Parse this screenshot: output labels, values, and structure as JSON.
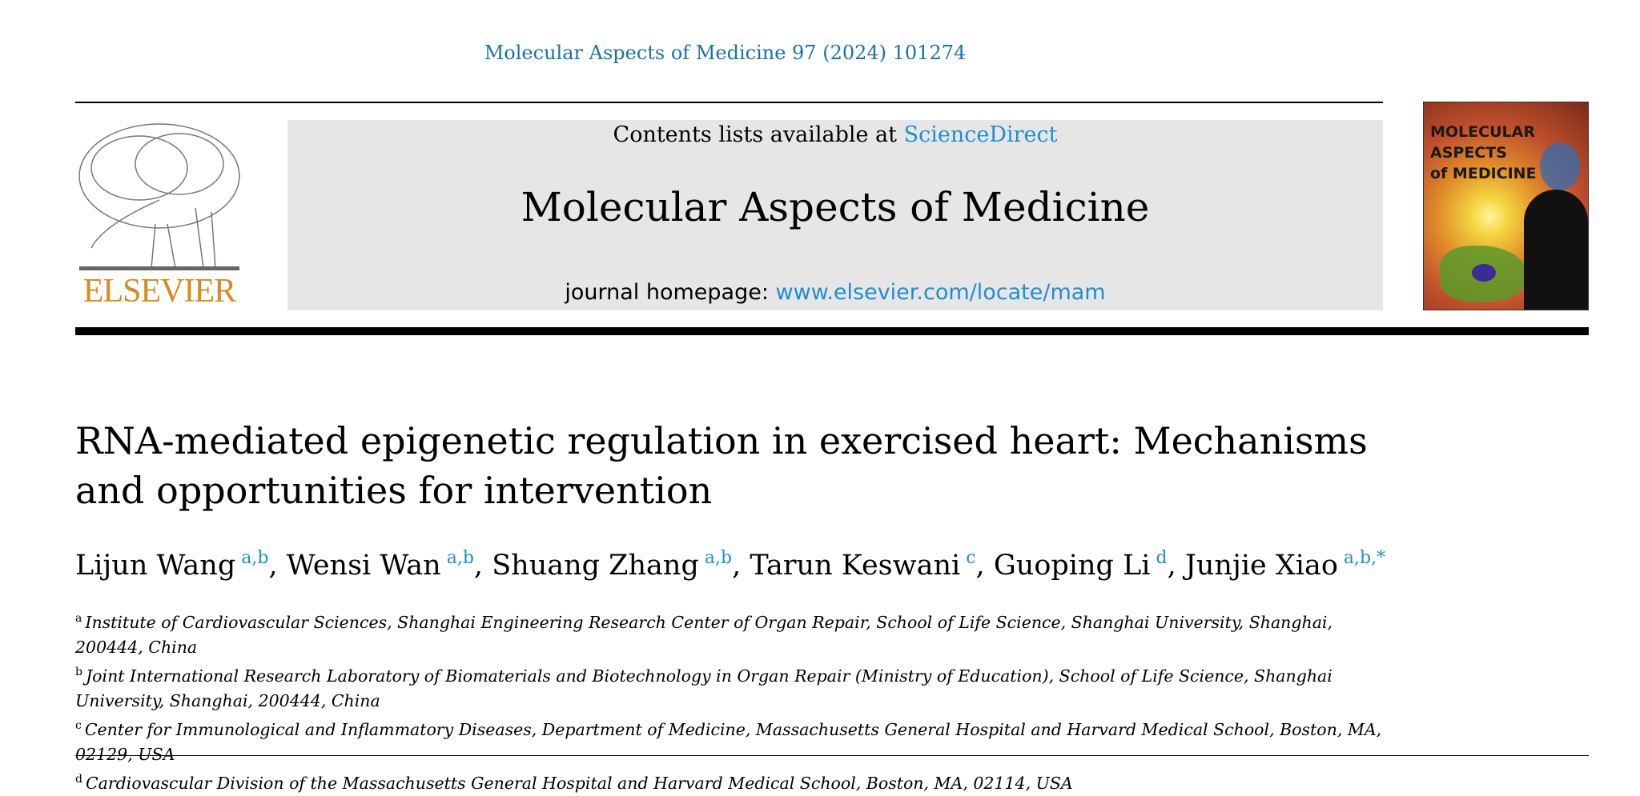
{
  "header": {
    "citation": "Molecular Aspects of Medicine 97 (2024) 101274",
    "contents_prefix": "Contents lists available at ",
    "contents_link": "ScienceDirect",
    "journal_name": "Molecular Aspects of Medicine",
    "homepage_prefix": "journal homepage: ",
    "homepage_link": "www.elsevier.com/locate/mam",
    "publisher_logo": "ELSEVIER",
    "cover_title": [
      "MOLECULAR",
      "ASPECTS",
      "of MEDICINE"
    ]
  },
  "article": {
    "title": "RNA-mediated epigenetic regulation in exercised heart: Mechanisms and opportunities for intervention",
    "authors": [
      {
        "name": "Lijun Wang",
        "affil": "a,b"
      },
      {
        "name": "Wensi Wan",
        "affil": "a,b"
      },
      {
        "name": "Shuang Zhang",
        "affil": "a,b"
      },
      {
        "name": "Tarun Keswani",
        "affil": "c"
      },
      {
        "name": "Guoping Li",
        "affil": "d"
      },
      {
        "name": "Junjie Xiao",
        "affil": "a,b,*"
      }
    ],
    "separator": ", ",
    "affiliations": [
      {
        "key": "a",
        "text": "Institute of Cardiovascular Sciences, Shanghai Engineering Research Center of Organ Repair, School of Life Science, Shanghai University, Shanghai, 200444, China"
      },
      {
        "key": "b",
        "text": "Joint International Research Laboratory of Biomaterials and Biotechnology in Organ Repair (Ministry of Education), School of Life Science, Shanghai University, Shanghai, 200444, China"
      },
      {
        "key": "c",
        "text": "Center for Immunological and Inflammatory Diseases, Department of Medicine, Massachusetts General Hospital and Harvard Medical School, Boston, MA, 02129, USA"
      },
      {
        "key": "d",
        "text": "Cardiovascular Division of the Massachusetts General Hospital and Harvard Medical School, Boston, MA, 02114, USA"
      }
    ]
  },
  "colors": {
    "link": "#1f8ecf",
    "citation": "#1a73a8",
    "elsevier_orange": "#d98a1e",
    "banner_bg": "#e6e6e6"
  }
}
